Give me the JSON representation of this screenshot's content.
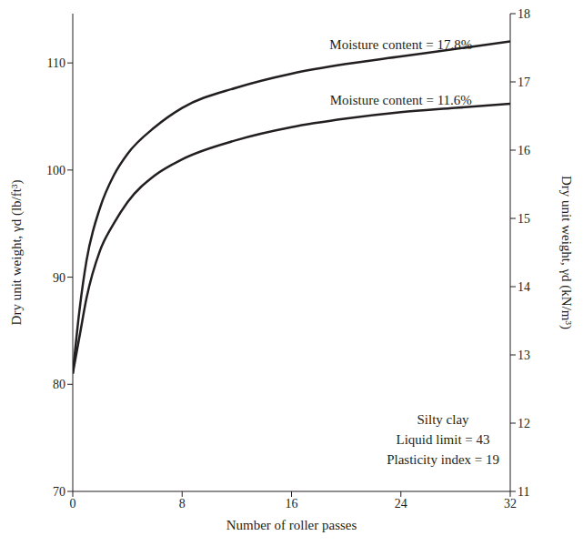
{
  "chart_data": {
    "type": "line",
    "x": [
      0,
      0.5,
      1,
      2,
      3,
      4,
      6,
      8,
      12,
      16,
      20,
      24,
      28,
      32
    ],
    "series": [
      {
        "name": "Moisture content = 17.8%",
        "color": "#231f20",
        "values": [
          81,
          87,
          91.5,
          96.5,
          99.5,
          101.5,
          104,
          105.8,
          107.7,
          109,
          109.9,
          110.6,
          111.3,
          112
        ]
      },
      {
        "name": "Moisture content = 11.6%",
        "color": "#231f20",
        "values": [
          81,
          84.5,
          88,
          92.5,
          95,
          97,
          99.5,
          101,
          102.8,
          104,
          104.8,
          105.4,
          105.8,
          106.2
        ]
      }
    ],
    "xlabel": "Number of roller passes",
    "ylabel": "Dry unit weight, γd (lb/ft³)",
    "y2label": "Dry unit weight, γd (kN/m³)",
    "xlim": [
      0,
      32
    ],
    "xticks": [
      0,
      8,
      16,
      24,
      32
    ],
    "ylim": [
      70,
      114.6
    ],
    "yticks": [
      70,
      80,
      90,
      100,
      110
    ],
    "y2lim": [
      11,
      18
    ],
    "y2ticks": [
      11,
      12,
      13,
      14,
      15,
      16,
      17,
      18
    ],
    "annotations": [
      "Silty clay",
      "Liquid limit = 43",
      "Plasticity index = 19"
    ],
    "grid": false
  }
}
